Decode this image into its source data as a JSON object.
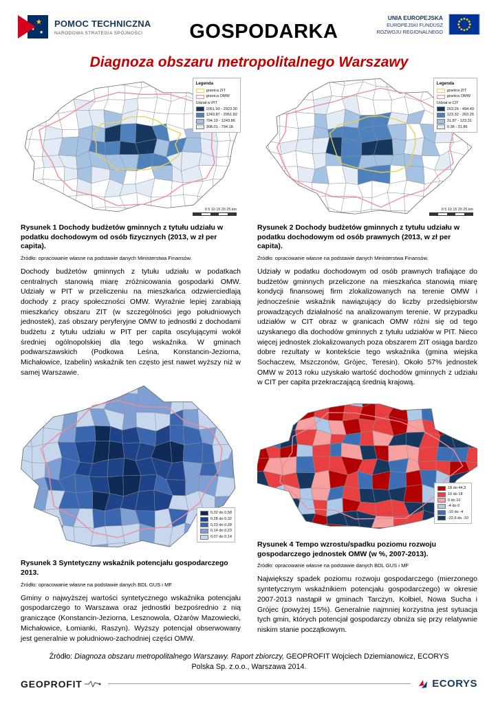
{
  "header": {
    "program_name": "POMOC TECHNICZNA",
    "program_sub": "NARODOWA STRATEGIA SPÓJNOŚCI",
    "title": "GOSPODARKA",
    "eu_name": "UNIA EUROPEJSKA",
    "eu_sub1": "EUROPEJSKI FUNDUSZ",
    "eu_sub2": "ROZWOJU REGIONALNEGO"
  },
  "subtitle": "Diagnoza obszaru metropolitalnego Warszawy",
  "figures": [
    {
      "caption": "Rysunek 1 Dochody budżetów gminnych z tytułu udziału w podatku dochodowym od osób fizycznych (2013, w zł per capita).",
      "source": "Źródło: opracowanie własne na podstawie danych Ministerstwa Finansów.",
      "scale": "0  5  10  15  20  25 km",
      "legend": {
        "title": "Legenda",
        "boundaries": [
          {
            "label": "granica ZIT",
            "color": "#e7cf4f"
          },
          {
            "label": "granica OMW",
            "color": "#ef8a9a"
          }
        ],
        "value_title": "Udział w PIT",
        "classes": [
          {
            "label": "2051.93 - 2923.30",
            "color": "#17375e"
          },
          {
            "label": "1243.87 - 2051.82",
            "color": "#4f81bd"
          },
          {
            "label": "794.19 - 1243.86",
            "color": "#a6c2e3"
          },
          {
            "label": "308.01 - 794.18",
            "color": "#e3ecf6"
          }
        ]
      },
      "body": "Dochody budżetów gminnych z tytułu udziału w podatkach centralnych stanowią miarę zróżnicowania gospodarki OMW. Udziały w PIT w przeliczeniu na mieszkańca odzwierciedlają dochody z pracy społeczności OMW. Wyraźnie lepiej zarabiają mieszkańcy obszaru ZIT (w szczególności jego południowych jednostek), zaś obszary peryferyjne OMW to jednostki z dochodami budżetu z tytułu udziału w PIT per capita oscylującymi wokół średniej ogólnopolskiej dla tego wskaźnika. W gminach podwarszawskich (Podkowa Leśna, Konstancin-Jeziorna, Michałowice, Izabelin) wskaźnik ten często jest nawet wyższy niż w samej Warszawie."
    },
    {
      "caption": "Rysunek 2 Dochody budżetów gminnych z tytułu udziału w podatku dochodowym od osób prawnych (2013, w zł per capita).",
      "source": "Źródło: opracowanie własne na podstawie danych Ministerstwa Finansów.",
      "scale": "0  5  10  15  20  25 km",
      "legend": {
        "title": "Legenda",
        "boundaries": [
          {
            "label": "granica ZIT",
            "color": "#e7cf4f"
          },
          {
            "label": "granica OMW",
            "color": "#ef8a9a"
          }
        ],
        "value_title": "Udział w CIT",
        "classes": [
          {
            "label": "263.26 - 494.49",
            "color": "#17375e"
          },
          {
            "label": "123.32 - 263.25",
            "color": "#4f81bd"
          },
          {
            "label": "31.87 - 123.31",
            "color": "#a6c2e3"
          },
          {
            "label": "0.38 - 31.86",
            "color": "#e3ecf6"
          }
        ]
      },
      "body": "Udziały w podatku dochodowym od osób prawnych trafiające do budżetów gminnych przeliczone na mieszkańca stanowią miarę kondycji finansowej firm zlokalizowanych na terenie OMW i jednocześnie wskaźnik nawiązujący do liczby przedsiębiorstw prowadzących działalność na analizowanym terenie. W przypadku udziałów w CIT obraz w granicach OMW różni się od tego uzyskanego dla dochodów gminnych z tytułu udziałów w PIT. Nieco więcej jednostek zlokalizowanych poza obszarem ZIT osiąga bardzo dobre rezultaty w kontekście tego wskaźnika (gmina wiejska Sochaczew, Mszczonów, Grójec, Teresin). Około 57% jednostek OMW w 2013 roku uzyskało wartość dochodów gminnych z udziału w CIT per capita przekraczającą średnią krajową."
    },
    {
      "caption": "Rysunek 3 Syntetyczny wskaźnik potencjału gospodarczego 2013.",
      "source": "Źródło: opracowanie własne na podstawie danych BDL GUS i MF",
      "legend": {
        "classes": [
          {
            "label": "0,32 do 0,58",
            "color": "#0f2a57"
          },
          {
            "label": "0,28 do 0,32",
            "color": "#1f4388"
          },
          {
            "label": "0,23 do 0,28",
            "color": "#3a66b0"
          },
          {
            "label": "0,14 do 0,23",
            "color": "#7d9fd3"
          },
          {
            "label": "0,07 do 0,14",
            "color": "#c7d7ee"
          }
        ]
      },
      "body": "Gminy o najwyższej wartości syntetycznego wskaźnika potencjału gospodarczego to Warszawa oraz jednostki bezpośrednio z nią graniczące (Konstancin-Jeziorna, Lesznowola, Ożarów Mazowiecki, Michałowice, Łomianki, Raszyn). Wyższy potencjał obserwowany jest generalnie w południowo-zachodniej części OMW."
    },
    {
      "caption": "Rysunek 4 Tempo wzrostu/spadku poziomu rozwoju gospodarczego jednostek OMW (w %, 2007-2013).",
      "source": "Źródło: opracowanie własne na podstawie danych BDL GUS i MF",
      "legend": {
        "classes": [
          {
            "label": "18 do 44,3",
            "color": "#b30000"
          },
          {
            "label": "10 do 18",
            "color": "#e84040"
          },
          {
            "label": "0 do 10",
            "color": "#f6a0a0"
          },
          {
            "label": "-4 do 0",
            "color": "#aec8e8"
          },
          {
            "label": "-10 do -4",
            "color": "#3d6fb5"
          },
          {
            "label": "-22,6 do -10",
            "color": "#17375e"
          }
        ]
      },
      "body": "Największy spadek poziomu rozwoju gospodarczego (mierzonego syntetycznym wskaźnikiem potencjału gospodarczego) w okresie 2007-2013 nastąpił w gminach Tarczyn, Kołbiel, Nowa Sucha i Grójec (powyżej 15%). Generalnie najmniej korzystna jest sytuacja tych gmin, których potencjał gospodarczy obniża się przy relatywnie niskim stanie początkowym."
    }
  ],
  "footer": {
    "source_label": "Źródło: ",
    "report_title": "Diagnoza obszaru metropolitalnego Warszawy. Raport zbiorczy,",
    "source_rest": " GEOPROFIT Wojciech Dziemianowicz, ECORYS Polska Sp. z.o.o., Warszawa 2014.",
    "geoprofit": "GEOPROFIT",
    "ecorys": "ECORYS"
  }
}
